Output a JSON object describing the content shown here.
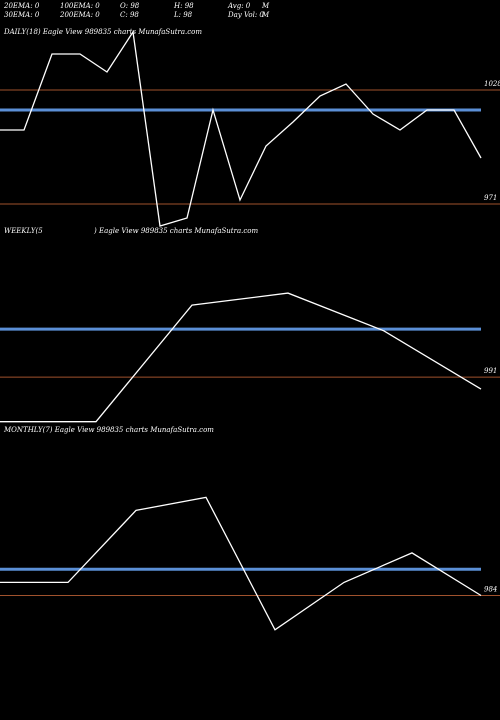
{
  "header": {
    "row1": [
      "20EMA: 0",
      "100EMA: 0",
      "O: 98",
      "H: 98",
      "Avg: 0",
      "M"
    ],
    "row2": [
      "30EMA: 0",
      "200EMA: 0",
      "C: 98",
      "L: 98",
      "Day Vol: 0",
      "M"
    ]
  },
  "colors": {
    "background": "#000000",
    "price_line": "#ffffff",
    "ema_line": "#5b8fd6",
    "level_line": "#a0522d"
  },
  "chart_data": [
    {
      "type": "line",
      "title": "DAILY(18) Eagle  View  989835 charts MunafaSutra.com",
      "levels": [
        {
          "label": "1028",
          "value": 1028
        },
        {
          "label": "971",
          "value": 971
        }
      ],
      "ema": 1018,
      "ylim": [
        963,
        1053
      ],
      "values": [
        1008,
        1008,
        1046,
        1046,
        1037,
        1057,
        960,
        964,
        1018,
        973,
        1000,
        1012,
        1025,
        1031,
        1016,
        1008,
        1018,
        1018,
        994
      ]
    },
    {
      "type": "line",
      "title": "WEEKLY(5",
      "title2": ") Eagle  View  989835 charts MunafaSutra.com",
      "levels": [
        {
          "label": "991",
          "value": 991
        }
      ],
      "ema": 1019,
      "ylim": [
        966,
        1071
      ],
      "values": [
        965,
        965,
        1033,
        1040,
        1018,
        984
      ]
    },
    {
      "type": "line",
      "title": "MONTHLY(7) Eagle  View  989835 charts MunafaSutra.com",
      "levels": [
        {
          "label": "984",
          "value": 984
        }
      ],
      "ema": 1000,
      "ylim": [
        969,
        1079
      ],
      "values": [
        992,
        992,
        1036,
        1044,
        963,
        992,
        1010,
        984
      ]
    }
  ]
}
